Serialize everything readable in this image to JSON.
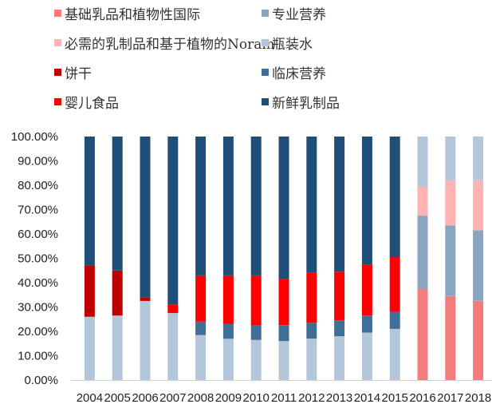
{
  "chart_data": {
    "type": "bar",
    "stacked": true,
    "percent": true,
    "categories": [
      "2004",
      "2005",
      "2006",
      "2007",
      "2008",
      "2009",
      "2010",
      "2011",
      "2012",
      "2013",
      "2014",
      "2015",
      "2016",
      "2017",
      "2018"
    ],
    "y_ticks": [
      "0.00%",
      "10.00%",
      "20.00%",
      "30.00%",
      "40.00%",
      "50.00%",
      "60.00%",
      "70.00%",
      "80.00%",
      "90.00%",
      "100.00%"
    ],
    "ylim": [
      0,
      100
    ],
    "grid": false,
    "legend_position": "top",
    "series": [
      {
        "name": "瓶装水",
        "color": "#b4c7da",
        "values": [
          26,
          26.5,
          32.5,
          27.5,
          18.5,
          17,
          16.5,
          16,
          17,
          18,
          19.5,
          21,
          0,
          0,
          0
        ]
      },
      {
        "name": "临床营养",
        "color": "#3f6f96",
        "values": [
          0,
          0,
          0,
          0,
          5.5,
          6,
          6,
          6.5,
          6.5,
          6.5,
          7,
          7,
          0,
          0,
          0
        ]
      },
      {
        "name": "婴儿食品",
        "color": "#ff0000",
        "values": [
          0,
          0,
          0,
          3.5,
          19,
          20,
          20.5,
          19,
          20.5,
          20,
          21,
          22.5,
          0,
          0,
          0
        ]
      },
      {
        "name": "饼干",
        "color": "#c00000",
        "values": [
          21,
          18.5,
          1.5,
          0,
          0,
          0,
          0,
          0,
          0,
          0,
          0,
          0,
          0,
          0,
          0
        ]
      },
      {
        "name": "新鲜乳制品",
        "color": "#1f4e79",
        "values": [
          53,
          55,
          66,
          69,
          57,
          57,
          57,
          58.5,
          56,
          55.5,
          52.5,
          49.5,
          0,
          0,
          0
        ]
      },
      {
        "name": "基础乳品和植物性国际",
        "color": "#f47c7c",
        "values": [
          0,
          0,
          0,
          0,
          0,
          0,
          0,
          0,
          0,
          0,
          0,
          0,
          37.5,
          34.5,
          32.5
        ]
      },
      {
        "name": "专业营养",
        "color": "#8aa5c1",
        "values": [
          0,
          0,
          0,
          0,
          0,
          0,
          0,
          0,
          0,
          0,
          0,
          0,
          30,
          29,
          29
        ]
      },
      {
        "name": "必需的乳制品和基于植物的Noram",
        "color": "#ffb3b3",
        "values": [
          0,
          0,
          0,
          0,
          0,
          0,
          0,
          0,
          0,
          0,
          0,
          0,
          12,
          18.5,
          20.5
        ]
      },
      {
        "name": "瓶装水 (2016-2018)",
        "legend_ref": "瓶装水",
        "color": "#b4c7da",
        "values": [
          0,
          0,
          0,
          0,
          0,
          0,
          0,
          0,
          0,
          0,
          0,
          0,
          20.5,
          18,
          18
        ]
      }
    ]
  },
  "legend": [
    {
      "label": "基础乳品和植物性国际",
      "color": "#f47c7c"
    },
    {
      "label": "专业营养",
      "color": "#8aa5c1"
    },
    {
      "label": "必需的乳制品和基于植物的Noram",
      "color": "#ffb3b3"
    },
    {
      "label": "瓶装水",
      "color": "#b4c7da"
    },
    {
      "label": "饼干",
      "color": "#c00000"
    },
    {
      "label": "临床营养",
      "color": "#3f6f96"
    },
    {
      "label": "婴儿食品",
      "color": "#ff0000"
    },
    {
      "label": "新鲜乳制品",
      "color": "#1f4e79"
    }
  ]
}
